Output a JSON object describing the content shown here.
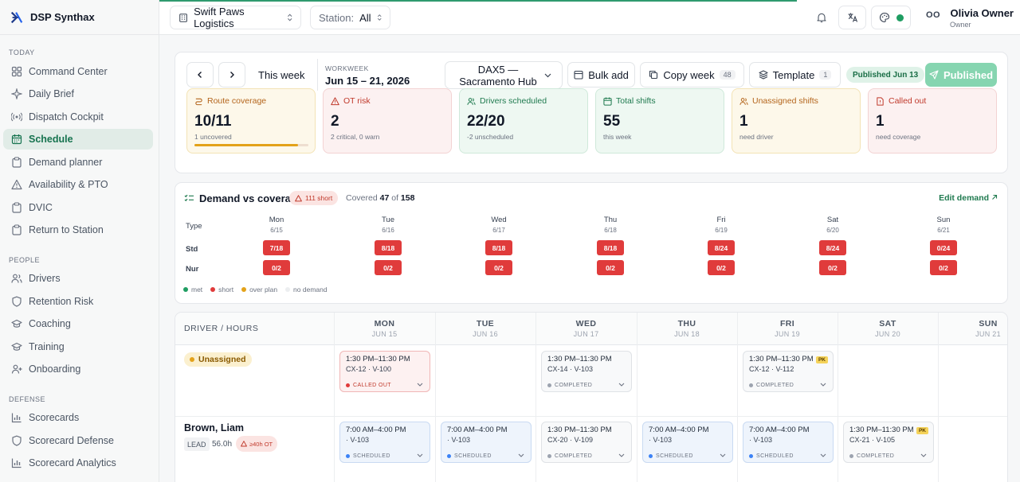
{
  "brand": {
    "name": "DSP Synthax"
  },
  "topbar": {
    "company": "Swift Paws Logistics",
    "station_label": "Station:",
    "station_value": "All",
    "user_name": "Olivia Owner",
    "user_role": "Owner",
    "user_initials": "OO"
  },
  "sidebar": {
    "sections": [
      {
        "label": "TODAY",
        "items": [
          "Command Center",
          "Daily Brief",
          "Dispatch Cockpit",
          "Schedule",
          "Demand planner",
          "Availability & PTO",
          "DVIC",
          "Return to Station"
        ]
      },
      {
        "label": "PEOPLE",
        "items": [
          "Drivers",
          "Retention Risk",
          "Coaching",
          "Training",
          "Onboarding"
        ]
      },
      {
        "label": "DEFENSE",
        "items": [
          "Scorecards",
          "Scorecard Defense",
          "Scorecard Analytics"
        ]
      }
    ],
    "active": "Schedule"
  },
  "toolbar": {
    "this_week": "This week",
    "workweek_label": "WORKWEEK",
    "workweek_range": "Jun 15 – 21, 2026",
    "station_select": "DAX5 — Sacramento Hub",
    "bulk_add": "Bulk add",
    "copy_week": "Copy week",
    "copy_week_count": "48",
    "template": "Template",
    "template_count": "1",
    "published_badge": "Published Jun 13",
    "published_button": "Published"
  },
  "stats": [
    {
      "title": "Route coverage",
      "value": "10/11",
      "sub": "1 uncovered",
      "progress": 0.91
    },
    {
      "title": "OT risk",
      "value": "2",
      "sub": "2 critical, 0 warn"
    },
    {
      "title": "Drivers scheduled",
      "value": "22/20",
      "sub": "-2 unscheduled"
    },
    {
      "title": "Total shifts",
      "value": "55",
      "sub": "this week"
    },
    {
      "title": "Unassigned shifts",
      "value": "1",
      "sub": "need driver"
    },
    {
      "title": "Called out",
      "value": "1",
      "sub": "need coverage"
    }
  ],
  "demand": {
    "title": "Demand vs coverage",
    "short_chip": "111 short",
    "covered_prefix": "Covered",
    "covered_value": "47",
    "covered_of": "of",
    "covered_total": "158",
    "edit_link": "Edit demand",
    "type_label": "Type",
    "days": [
      {
        "day": "Mon",
        "date": "6/15"
      },
      {
        "day": "Tue",
        "date": "6/16"
      },
      {
        "day": "Wed",
        "date": "6/17"
      },
      {
        "day": "Thu",
        "date": "6/18"
      },
      {
        "day": "Fri",
        "date": "6/19"
      },
      {
        "day": "Sat",
        "date": "6/20"
      },
      {
        "day": "Sun",
        "date": "6/21"
      }
    ],
    "rows": [
      {
        "type": "Std",
        "cells": [
          "7/18",
          "8/18",
          "8/18",
          "8/18",
          "8/24",
          "8/24",
          "0/24"
        ]
      },
      {
        "type": "Nur",
        "cells": [
          "0/2",
          "0/2",
          "0/2",
          "0/2",
          "0/2",
          "0/2",
          "0/2"
        ]
      }
    ],
    "legend": [
      "met",
      "short",
      "over plan",
      "no demand"
    ],
    "colors": {
      "met": "#1f9d62",
      "short": "#e03b3b",
      "over": "#e3a21a",
      "none": "#d1d5db"
    }
  },
  "schedule": {
    "header_label": "DRIVER / HOURS",
    "days": [
      {
        "day": "MON",
        "date": "JUN 15"
      },
      {
        "day": "TUE",
        "date": "JUN 16"
      },
      {
        "day": "WED",
        "date": "JUN 17"
      },
      {
        "day": "THU",
        "date": "JUN 18"
      },
      {
        "day": "FRI",
        "date": "JUN 19"
      },
      {
        "day": "SAT",
        "date": "JUN 20"
      },
      {
        "day": "SUN",
        "date": "JUN 21"
      }
    ],
    "unassigned_label": "Unassigned",
    "driver": {
      "name": "Brown, Liam",
      "role": "LEAD",
      "hours": "56.0h",
      "ot_chip": "≥40h OT"
    },
    "unassigned_shifts": [
      {
        "time": "1:30 PM–11:30 PM",
        "route": "CX-12 · V-100",
        "status": "CALLED OUT"
      },
      {
        "time": "1:30 PM–11:30 PM",
        "route": "CX-14 · V-103",
        "status": "COMPLETED"
      },
      {
        "time": "1:30 PM–11:30 PM",
        "route": "CX-12 · V-112",
        "status": "COMPLETED",
        "tag": "PK"
      }
    ],
    "driver_shifts": [
      {
        "time": "7:00 AM–4:00 PM",
        "route": "· V-103",
        "status": "SCHEDULED"
      },
      {
        "time": "7:00 AM–4:00 PM",
        "route": "· V-103",
        "status": "SCHEDULED"
      },
      {
        "time": "1:30 PM–11:30 PM",
        "route": "CX-20 · V-109",
        "status": "COMPLETED"
      },
      {
        "time": "7:00 AM–4:00 PM",
        "route": "· V-103",
        "status": "SCHEDULED"
      },
      {
        "time": "7:00 AM–4:00 PM",
        "route": "· V-103",
        "status": "SCHEDULED"
      },
      {
        "time": "1:30 PM–11:30 PM",
        "route": "CX-21 · V-105",
        "status": "COMPLETED",
        "tag": "PK"
      }
    ]
  }
}
